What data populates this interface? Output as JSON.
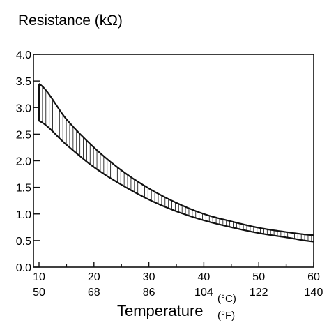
{
  "chart_data": {
    "type": "area",
    "title": "",
    "ylabel": "Resistance (kΩ)",
    "xlabel": "Temperature",
    "x_unit_c": "(°C)",
    "x_unit_f": "(°F)",
    "xlim": [
      10,
      60
    ],
    "ylim": [
      0,
      4
    ],
    "x_ticks_c": [
      "10",
      "20",
      "30",
      "40",
      "50",
      "60"
    ],
    "x_ticks_f": [
      "50",
      "68",
      "86",
      "104",
      "122",
      "140"
    ],
    "y_ticks": [
      "0.0",
      "0.5",
      "1.0",
      "1.5",
      "2.0",
      "2.5",
      "3.0",
      "3.5",
      "4.0"
    ],
    "grid": false,
    "series": [
      {
        "role": "upper",
        "x": [
          10,
          15,
          20,
          25,
          30,
          35,
          40,
          45,
          50,
          55,
          60
        ],
        "values": [
          3.45,
          2.78,
          2.25,
          1.82,
          1.48,
          1.21,
          1.0,
          0.86,
          0.74,
          0.66,
          0.6
        ]
      },
      {
        "role": "lower",
        "x": [
          10,
          15,
          20,
          25,
          30,
          35,
          40,
          45,
          50,
          55,
          60
        ],
        "values": [
          2.75,
          2.3,
          1.88,
          1.55,
          1.27,
          1.05,
          0.88,
          0.75,
          0.64,
          0.56,
          0.48
        ]
      }
    ]
  }
}
